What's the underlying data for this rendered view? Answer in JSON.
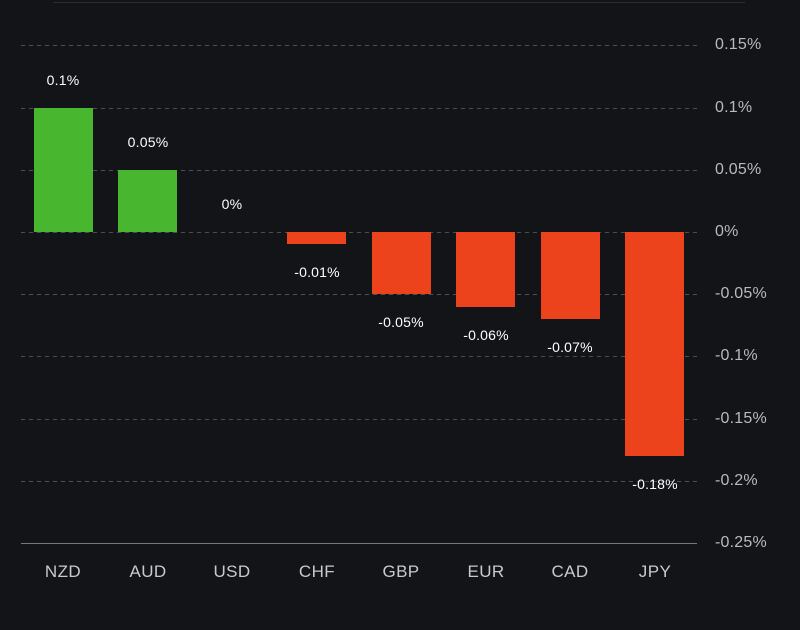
{
  "chart_data": {
    "type": "bar",
    "title": "",
    "xlabel": "",
    "ylabel": "",
    "categories": [
      "NZD",
      "AUD",
      "USD",
      "CHF",
      "GBP",
      "EUR",
      "CAD",
      "JPY"
    ],
    "values": [
      0.1,
      0.05,
      0,
      -0.01,
      -0.05,
      -0.06,
      -0.07,
      -0.18
    ],
    "bar_value_labels": [
      "0.1%",
      "0.05%",
      "0%",
      "-0.01%",
      "-0.05%",
      "-0.06%",
      "-0.07%",
      "-0.18%"
    ],
    "y_axis": {
      "side": "right",
      "tick_labels": [
        "0.15%",
        "0.1%",
        "0.05%",
        "0%",
        "-0.05%",
        "-0.1%",
        "-0.15%",
        "-0.2%",
        "-0.25%"
      ],
      "tick_values": [
        0.15,
        0.1,
        0.05,
        0,
        -0.05,
        -0.1,
        -0.15,
        -0.2,
        -0.25
      ],
      "ylim": [
        -0.25,
        0.15
      ]
    },
    "grid": "horizontal-dashed",
    "legend": "none",
    "colors": {
      "positive_bar": "#48b62f",
      "negative_bar": "#ec431d",
      "background": "#131418",
      "gridline": "#4a4d52",
      "baseline": "#74777c",
      "value_label_text": "#ffffff",
      "y_tick_text": "#b7bac0",
      "category_text": "#c7cacf",
      "top_divider": "#2b2d31"
    }
  }
}
